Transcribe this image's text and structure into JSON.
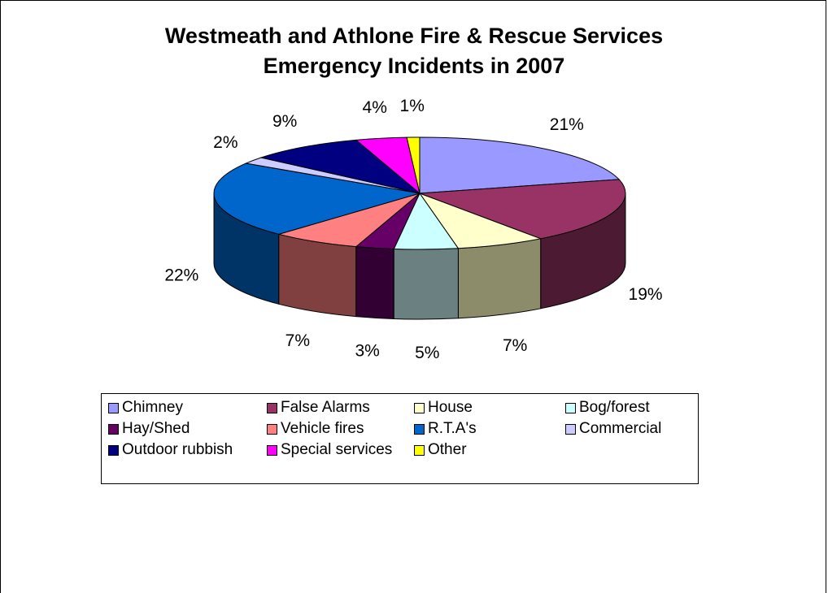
{
  "chart_data": {
    "type": "pie",
    "title_lines": [
      "Westmeath and Athlone Fire & Rescue Services",
      "Emergency Incidents in 2007"
    ],
    "legend_position": "bottom",
    "slices": [
      {
        "name": "Chimney",
        "value": 21,
        "label": "21%",
        "color": "#9999ff",
        "side": "#666699"
      },
      {
        "name": "False Alarms",
        "value": 19,
        "label": "19%",
        "color": "#993366",
        "side": "#4d1a33"
      },
      {
        "name": "House",
        "value": 7,
        "label": "7%",
        "color": "#ffffcc",
        "side": "#8c8c6b"
      },
      {
        "name": "Bog/forest",
        "value": 5,
        "label": "5%",
        "color": "#ccffff",
        "side": "#6b8080"
      },
      {
        "name": "Hay/Shed",
        "value": 3,
        "label": "3%",
        "color": "#660066",
        "side": "#330033"
      },
      {
        "name": "Vehicle fires",
        "value": 7,
        "label": "7%",
        "color": "#ff8080",
        "side": "#804040"
      },
      {
        "name": "R.T.A's",
        "value": 22,
        "label": "22%",
        "color": "#0066cc",
        "side": "#003366"
      },
      {
        "name": "Commercial",
        "value": 2,
        "label": "2%",
        "color": "#ccccff",
        "side": "#666680"
      },
      {
        "name": "Outdoor rubbish",
        "value": 9,
        "label": "9%",
        "color": "#000080",
        "side": "#000040"
      },
      {
        "name": "Special services",
        "value": 4,
        "label": "4%",
        "color": "#ff00ff",
        "side": "#800080"
      },
      {
        "name": "Other",
        "value": 1,
        "label": "1%",
        "color": "#ffff00",
        "side": "#808000"
      }
    ]
  }
}
